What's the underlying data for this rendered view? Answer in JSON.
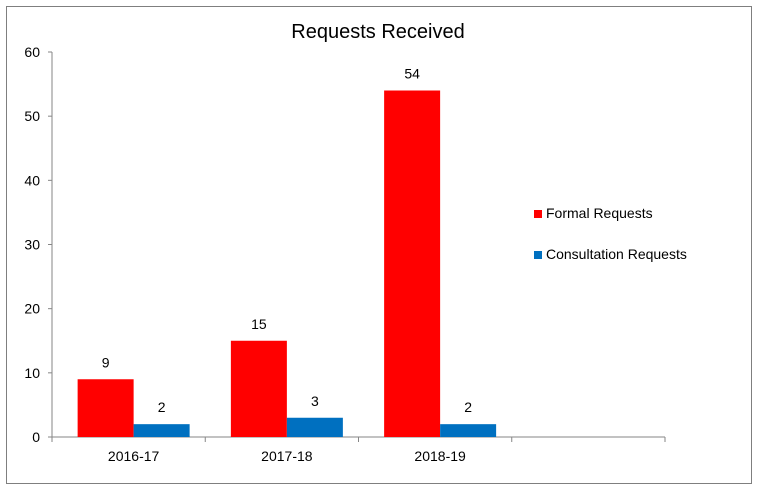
{
  "chart_data": {
    "type": "bar",
    "title": "Requests Received",
    "xlabel": "",
    "ylabel": "",
    "categories": [
      "2016-17",
      "2017-18",
      "2018-19"
    ],
    "series": [
      {
        "name": "Formal Requests",
        "values": [
          9,
          15,
          54
        ],
        "color": "#ff0000"
      },
      {
        "name": "Consultation Requests",
        "values": [
          2,
          3,
          2
        ],
        "color": "#0070c0"
      }
    ],
    "ylim": [
      0,
      60
    ],
    "yticks": [
      "0",
      "10",
      "20",
      "30",
      "40",
      "50",
      "60"
    ],
    "grid": false,
    "legend": "right"
  }
}
